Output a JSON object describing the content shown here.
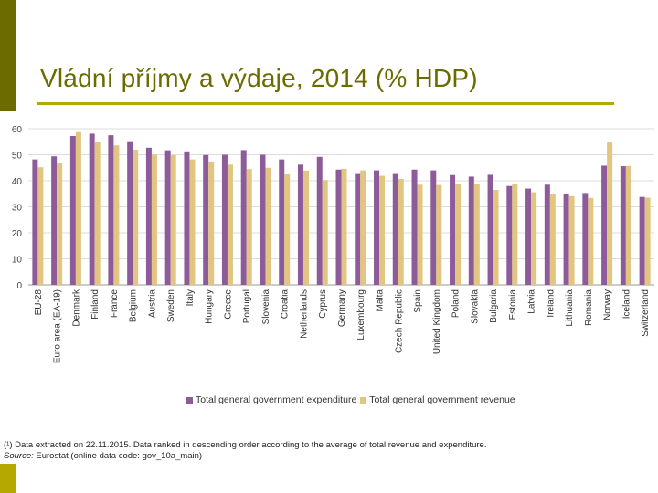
{
  "slide": {
    "title": "Vládní příjmy a výdaje, 2014 (% HDP)",
    "accent_color": "#6b6b00",
    "rule_color": "#b5a800"
  },
  "chart_data": {
    "type": "bar",
    "title": "",
    "xlabel": "",
    "ylabel": "",
    "ylim": [
      0,
      60
    ],
    "yticks": [
      0,
      10,
      20,
      30,
      40,
      50,
      60
    ],
    "ytick_labels": [
      "0",
      "10",
      "20",
      "30",
      "40",
      "50",
      "60"
    ],
    "grid": true,
    "legend_position": "bottom",
    "categories": [
      "EU-28",
      "Euro area (EA-19)",
      "Denmark",
      "Finland",
      "France",
      "Belgium",
      "Austria",
      "Sweden",
      "Italy",
      "Hungary",
      "Greece",
      "Portugal",
      "Slovenia",
      "Croatia",
      "Netherlands",
      "Cyprus",
      "Germany",
      "Luxembourg",
      "Malta",
      "Czech Republic",
      "Spain",
      "United Kingdom",
      "Poland",
      "Slovakia",
      "Bulgaria",
      "Estonia",
      "Latvia",
      "Ireland",
      "Lithuania",
      "Romania",
      "Norway",
      "Iceland",
      "Switzerland"
    ],
    "series": [
      {
        "name": "Total general government expenditure",
        "color": "#8e5b9a",
        "values": [
          48.2,
          49.4,
          57.2,
          58.1,
          57.5,
          55.2,
          52.7,
          51.7,
          51.3,
          49.9,
          50.0,
          51.8,
          50.0,
          48.2,
          46.2,
          49.2,
          44.3,
          42.6,
          44.0,
          42.6,
          44.3,
          44.0,
          42.2,
          41.6,
          42.3,
          38.0,
          37.0,
          38.5,
          34.9,
          35.3,
          45.8,
          45.6,
          33.8
        ]
      },
      {
        "name": "Total general government revenue",
        "color": "#e2c581",
        "values": [
          45.2,
          46.8,
          58.7,
          54.9,
          53.6,
          51.9,
          50.0,
          49.8,
          48.2,
          47.4,
          46.2,
          44.5,
          45.0,
          42.5,
          43.9,
          40.3,
          44.6,
          44.0,
          41.9,
          40.7,
          38.5,
          38.4,
          38.9,
          38.8,
          36.5,
          38.8,
          35.6,
          34.8,
          34.1,
          33.4,
          54.7,
          45.7,
          33.5
        ]
      }
    ]
  },
  "footnote": {
    "line1": "(¹) Data extracted on 22.11.2015. Data ranked in descending order according to the average of total revenue and expenditure.",
    "source_label": "Source:",
    "source_text": " Eurostat (online data code: gov_10a_main)"
  }
}
